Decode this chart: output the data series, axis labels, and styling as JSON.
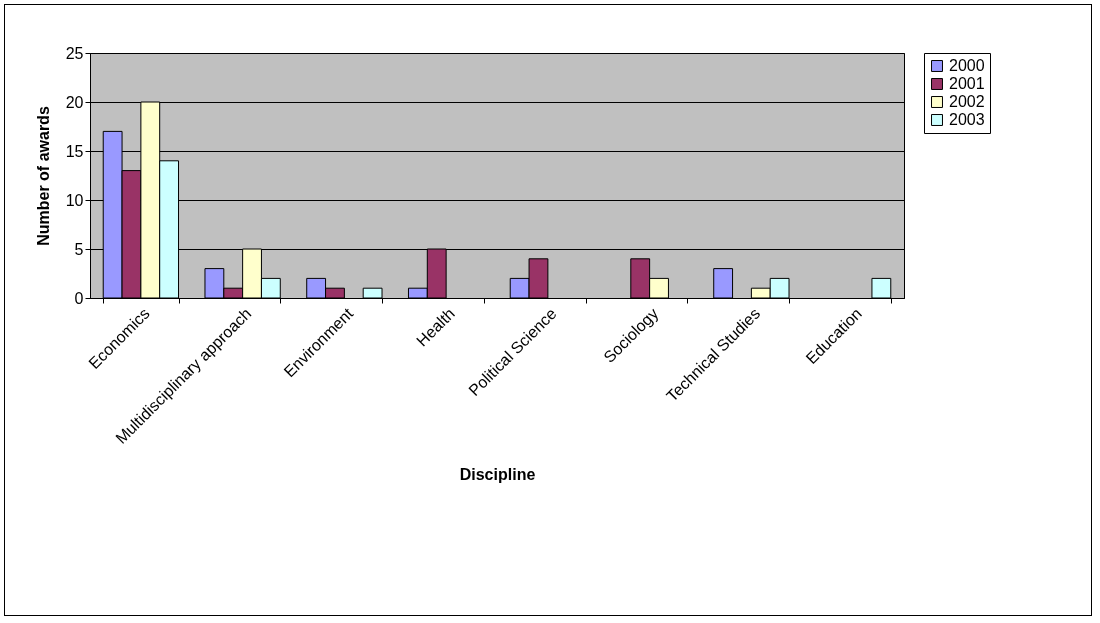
{
  "chart_data": {
    "type": "bar",
    "xlabel": "Discipline",
    "ylabel": "Number of awards",
    "categories": [
      "Economics",
      "Multidisciplinary approach",
      "Environment",
      "Health",
      "Political Science",
      "Sociology",
      "Technical Studies",
      "Education"
    ],
    "series": [
      {
        "name": "2000",
        "color": "#9999ff",
        "values": [
          17,
          3,
          2,
          1,
          2,
          null,
          3,
          null
        ]
      },
      {
        "name": "2001",
        "color": "#993366",
        "values": [
          13,
          1,
          1,
          5,
          4,
          4,
          null,
          null
        ]
      },
      {
        "name": "2002",
        "color": "#ffffcc",
        "values": [
          20,
          5,
          null,
          null,
          null,
          2,
          1,
          null
        ]
      },
      {
        "name": "2003",
        "color": "#ccffff",
        "values": [
          14,
          2,
          1,
          null,
          null,
          null,
          2,
          2
        ]
      }
    ],
    "ylim": [
      0,
      25
    ],
    "yticks": [
      0,
      5,
      10,
      15,
      20,
      25
    ],
    "grid": "y",
    "legend": "right"
  }
}
